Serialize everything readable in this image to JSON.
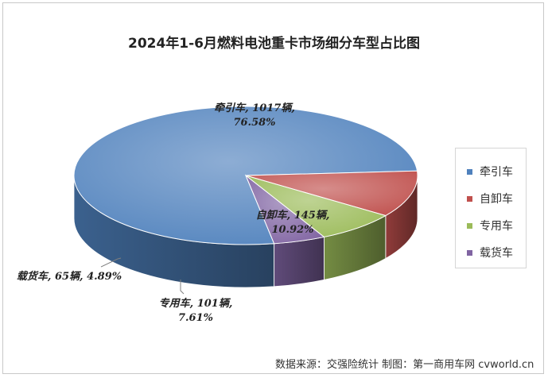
{
  "chart_data": {
    "type": "pie",
    "title": "2024年1-6月燃料电池重卡市场细分车型占比图",
    "categories": [
      "牵引车",
      "自卸车",
      "专用车",
      "载货车"
    ],
    "values": [
      1017,
      145,
      101,
      65
    ],
    "percents": [
      "76.58%",
      "10.92%",
      "7.61%",
      "4.89%"
    ],
    "unit": "辆",
    "colors": [
      "#4f81bd",
      "#c0504d",
      "#9bbb59",
      "#8064a2"
    ],
    "slice_labels": [
      {
        "line1": "牵引车, 1017辆,",
        "line2": "76.58%"
      },
      {
        "line1": "自卸车, 145辆,",
        "line2": "10.92%"
      },
      {
        "line1": "专用车, 101辆,",
        "line2": "7.61%"
      },
      {
        "line1": "载货车, 65辆, 4.89%",
        "line2": ""
      }
    ],
    "legend_position": "right",
    "legend": [
      "牵引车",
      "自卸车",
      "专用车",
      "载货车"
    ]
  },
  "source": "数据来源：交强险统计    制图：第一商用车网 cvworld.cn"
}
